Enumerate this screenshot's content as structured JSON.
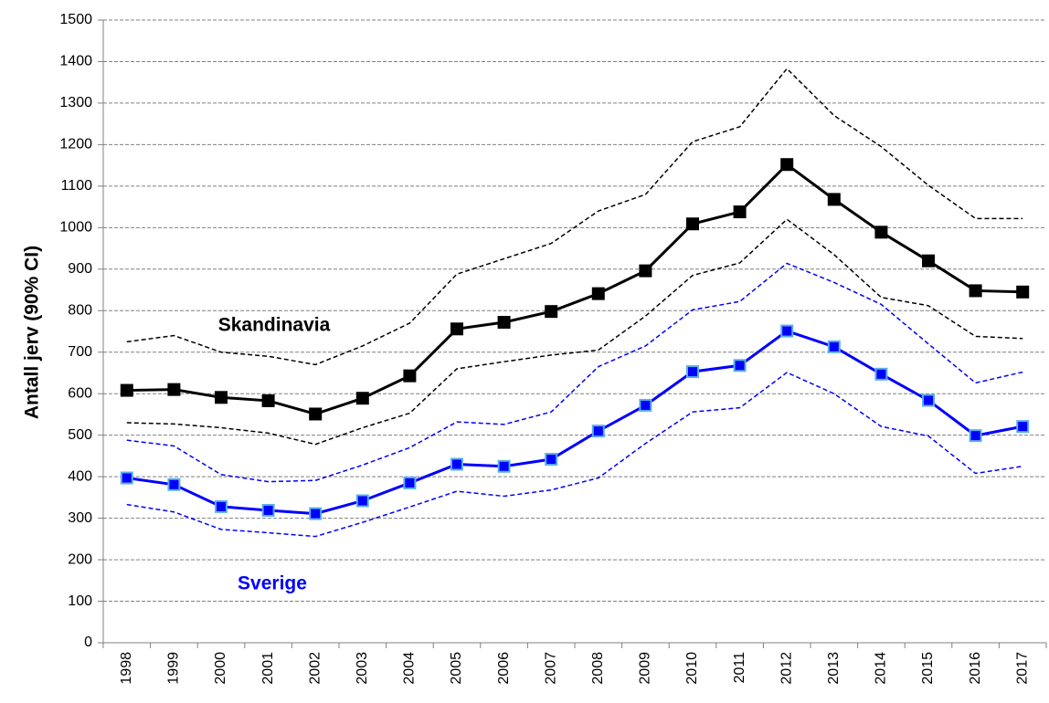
{
  "chart_data": {
    "type": "line",
    "y_label": "Antall jerv (90% CI)",
    "categories": [
      "1998",
      "1999",
      "2000",
      "2001",
      "2002",
      "2003",
      "2004",
      "2005",
      "2006",
      "2007",
      "2008",
      "2009",
      "2010",
      "2011",
      "2012",
      "2013",
      "2014",
      "2015",
      "2016",
      "2017"
    ],
    "ylim": [
      0,
      1500
    ],
    "yticks": [
      0,
      100,
      200,
      300,
      400,
      500,
      600,
      700,
      800,
      900,
      1000,
      1100,
      1200,
      1300,
      1400,
      1500
    ],
    "grid": true,
    "series": [
      {
        "name": "Skandinavia",
        "color": "#000000",
        "line_style": "solid",
        "marker": "square",
        "marker_edge": "#000000",
        "values": [
          608,
          610,
          591,
          583,
          551,
          589,
          643,
          756,
          772,
          798,
          841,
          896,
          1009,
          1038,
          1152,
          1068,
          989,
          920,
          848,
          845
        ]
      },
      {
        "color": "#000000",
        "line_style": "dashed",
        "values": [
          725,
          740,
          700,
          690,
          670,
          715,
          770,
          888,
          925,
          962,
          1040,
          1080,
          1207,
          1243,
          1383,
          1270,
          1195,
          1102,
          1022,
          1022
        ]
      },
      {
        "color": "#000000",
        "line_style": "dashed",
        "values": [
          530,
          527,
          518,
          505,
          478,
          518,
          553,
          660,
          677,
          693,
          705,
          787,
          885,
          915,
          1020,
          935,
          832,
          812,
          738,
          733
        ]
      },
      {
        "name": "Sverige",
        "color": "#0000ff",
        "line_style": "solid",
        "marker": "square",
        "marker_edge": "#5ab0e8",
        "values": [
          397,
          381,
          328,
          319,
          311,
          342,
          385,
          430,
          425,
          442,
          510,
          572,
          653,
          668,
          751,
          713,
          647,
          584,
          499,
          521
        ]
      },
      {
        "color": "#0000ff",
        "line_style": "dashed",
        "values": [
          488,
          474,
          405,
          388,
          391,
          428,
          470,
          532,
          526,
          556,
          665,
          715,
          802,
          822,
          914,
          868,
          815,
          720,
          626,
          652
        ]
      },
      {
        "color": "#0000ff",
        "line_style": "dashed",
        "values": [
          333,
          315,
          273,
          265,
          256,
          290,
          327,
          365,
          353,
          368,
          397,
          480,
          556,
          566,
          651,
          600,
          521,
          498,
          408,
          425
        ]
      }
    ]
  }
}
